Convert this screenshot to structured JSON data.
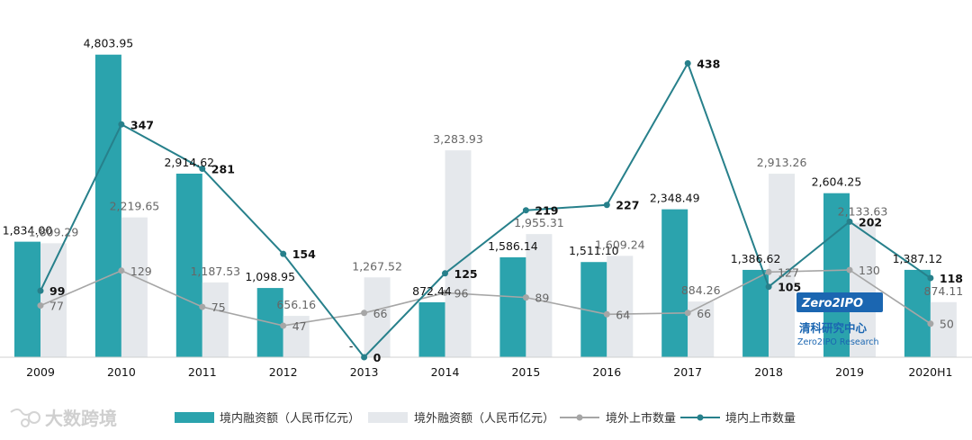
{
  "chart_data": {
    "type": "bar",
    "categories": [
      "2009",
      "2010",
      "2011",
      "2012",
      "2013",
      "2014",
      "2015",
      "2016",
      "2017",
      "2018",
      "2019",
      "2020H1"
    ],
    "bar_series": [
      {
        "name": "境内融资额（人民币亿元）",
        "color": "#2ba3ad",
        "values": [
          1834.0,
          4803.95,
          2914.62,
          1098.95,
          0,
          872.44,
          1586.14,
          1511.1,
          2348.49,
          1386.62,
          2604.25,
          1387.12
        ],
        "labels": [
          "1,834.00",
          "4,803.95",
          "2,914.62",
          "1,098.95",
          "-",
          "872.44",
          "1,586.14",
          "1,511.10",
          "2,348.49",
          "1,386.62",
          "2,604.25",
          "1,387.12"
        ]
      },
      {
        "name": "境外融资额（人民币亿元）",
        "color": "#e5e8ec",
        "values": [
          1809.29,
          2219.65,
          1187.53,
          656.16,
          1267.52,
          3283.93,
          1955.31,
          1609.24,
          884.26,
          2913.26,
          2133.63,
          874.11
        ],
        "labels": [
          "1,809.29",
          "2,219.65",
          "1,187.53",
          "656.16",
          "1,267.52",
          "3,283.93",
          "1,955.31",
          "1,609.24",
          "884.26",
          "2,913.26",
          "2,133.63",
          "874.11"
        ]
      }
    ],
    "line_series": [
      {
        "name": "境外上市数量",
        "color": "#a6a6a6",
        "values": [
          77,
          129,
          75,
          47,
          66,
          96,
          89,
          64,
          66,
          127,
          130,
          50
        ]
      },
      {
        "name": "境内上市数量",
        "color": "#27808b",
        "values": [
          99,
          347,
          281,
          154,
          0,
          125,
          219,
          227,
          438,
          105,
          202,
          118
        ]
      }
    ],
    "bar_ylim": [
      0,
      4900
    ],
    "line_ylim": [
      0,
      460
    ]
  },
  "watermark": {
    "text": "大数跨境"
  },
  "logo": {
    "brand": "Zero2IPO",
    "chinese": "清科研究中心",
    "english": "Zero2IPO Research"
  }
}
